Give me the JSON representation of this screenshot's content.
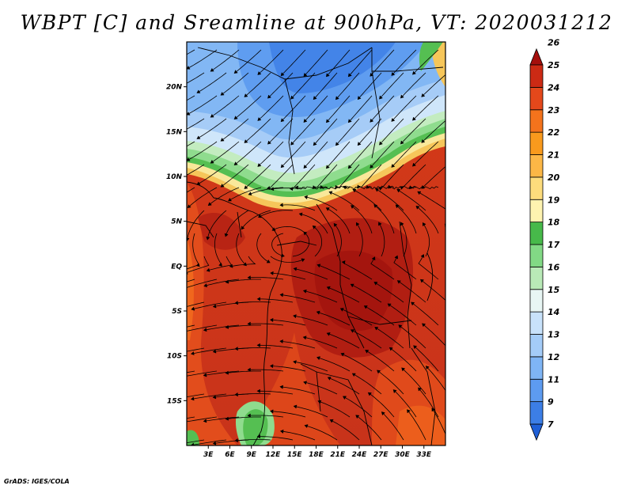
{
  "title": "WBPT [C] and Sreamline at 900hPa, VT: 2020031212",
  "credit": "GrADS: IGES/COLA",
  "map": {
    "lat_range": [
      -20,
      25
    ],
    "lon_range": [
      0,
      36
    ],
    "lat_labels": [
      "20N",
      "15N",
      "10N",
      "5N",
      "EQ",
      "5S",
      "10S",
      "15S"
    ],
    "lat_values": [
      20,
      15,
      10,
      5,
      0,
      -5,
      -10,
      -15
    ],
    "lon_labels": [
      "3E",
      "6E",
      "9E",
      "12E",
      "15E",
      "18E",
      "21E",
      "24E",
      "27E",
      "30E",
      "33E"
    ],
    "lon_values": [
      3,
      6,
      9,
      12,
      15,
      18,
      21,
      24,
      27,
      30,
      33
    ]
  },
  "colorbar": {
    "labels": [
      "7",
      "9",
      "11",
      "12",
      "13",
      "14",
      "15",
      "16",
      "17",
      "18",
      "19",
      "20",
      "21",
      "22",
      "23",
      "24",
      "25",
      "26"
    ],
    "colors": [
      "#1f5fd6",
      "#3c7ee6",
      "#5d9bf0",
      "#7fb5f5",
      "#a4ccf8",
      "#c8e2fb",
      "#e8f6f4",
      "#b9eab7",
      "#82d985",
      "#47b94a",
      "#fef3b0",
      "#fddc7c",
      "#fcb746",
      "#f99a1d",
      "#f4731c",
      "#e4481b",
      "#cc2a14",
      "#a50f0c"
    ]
  }
}
